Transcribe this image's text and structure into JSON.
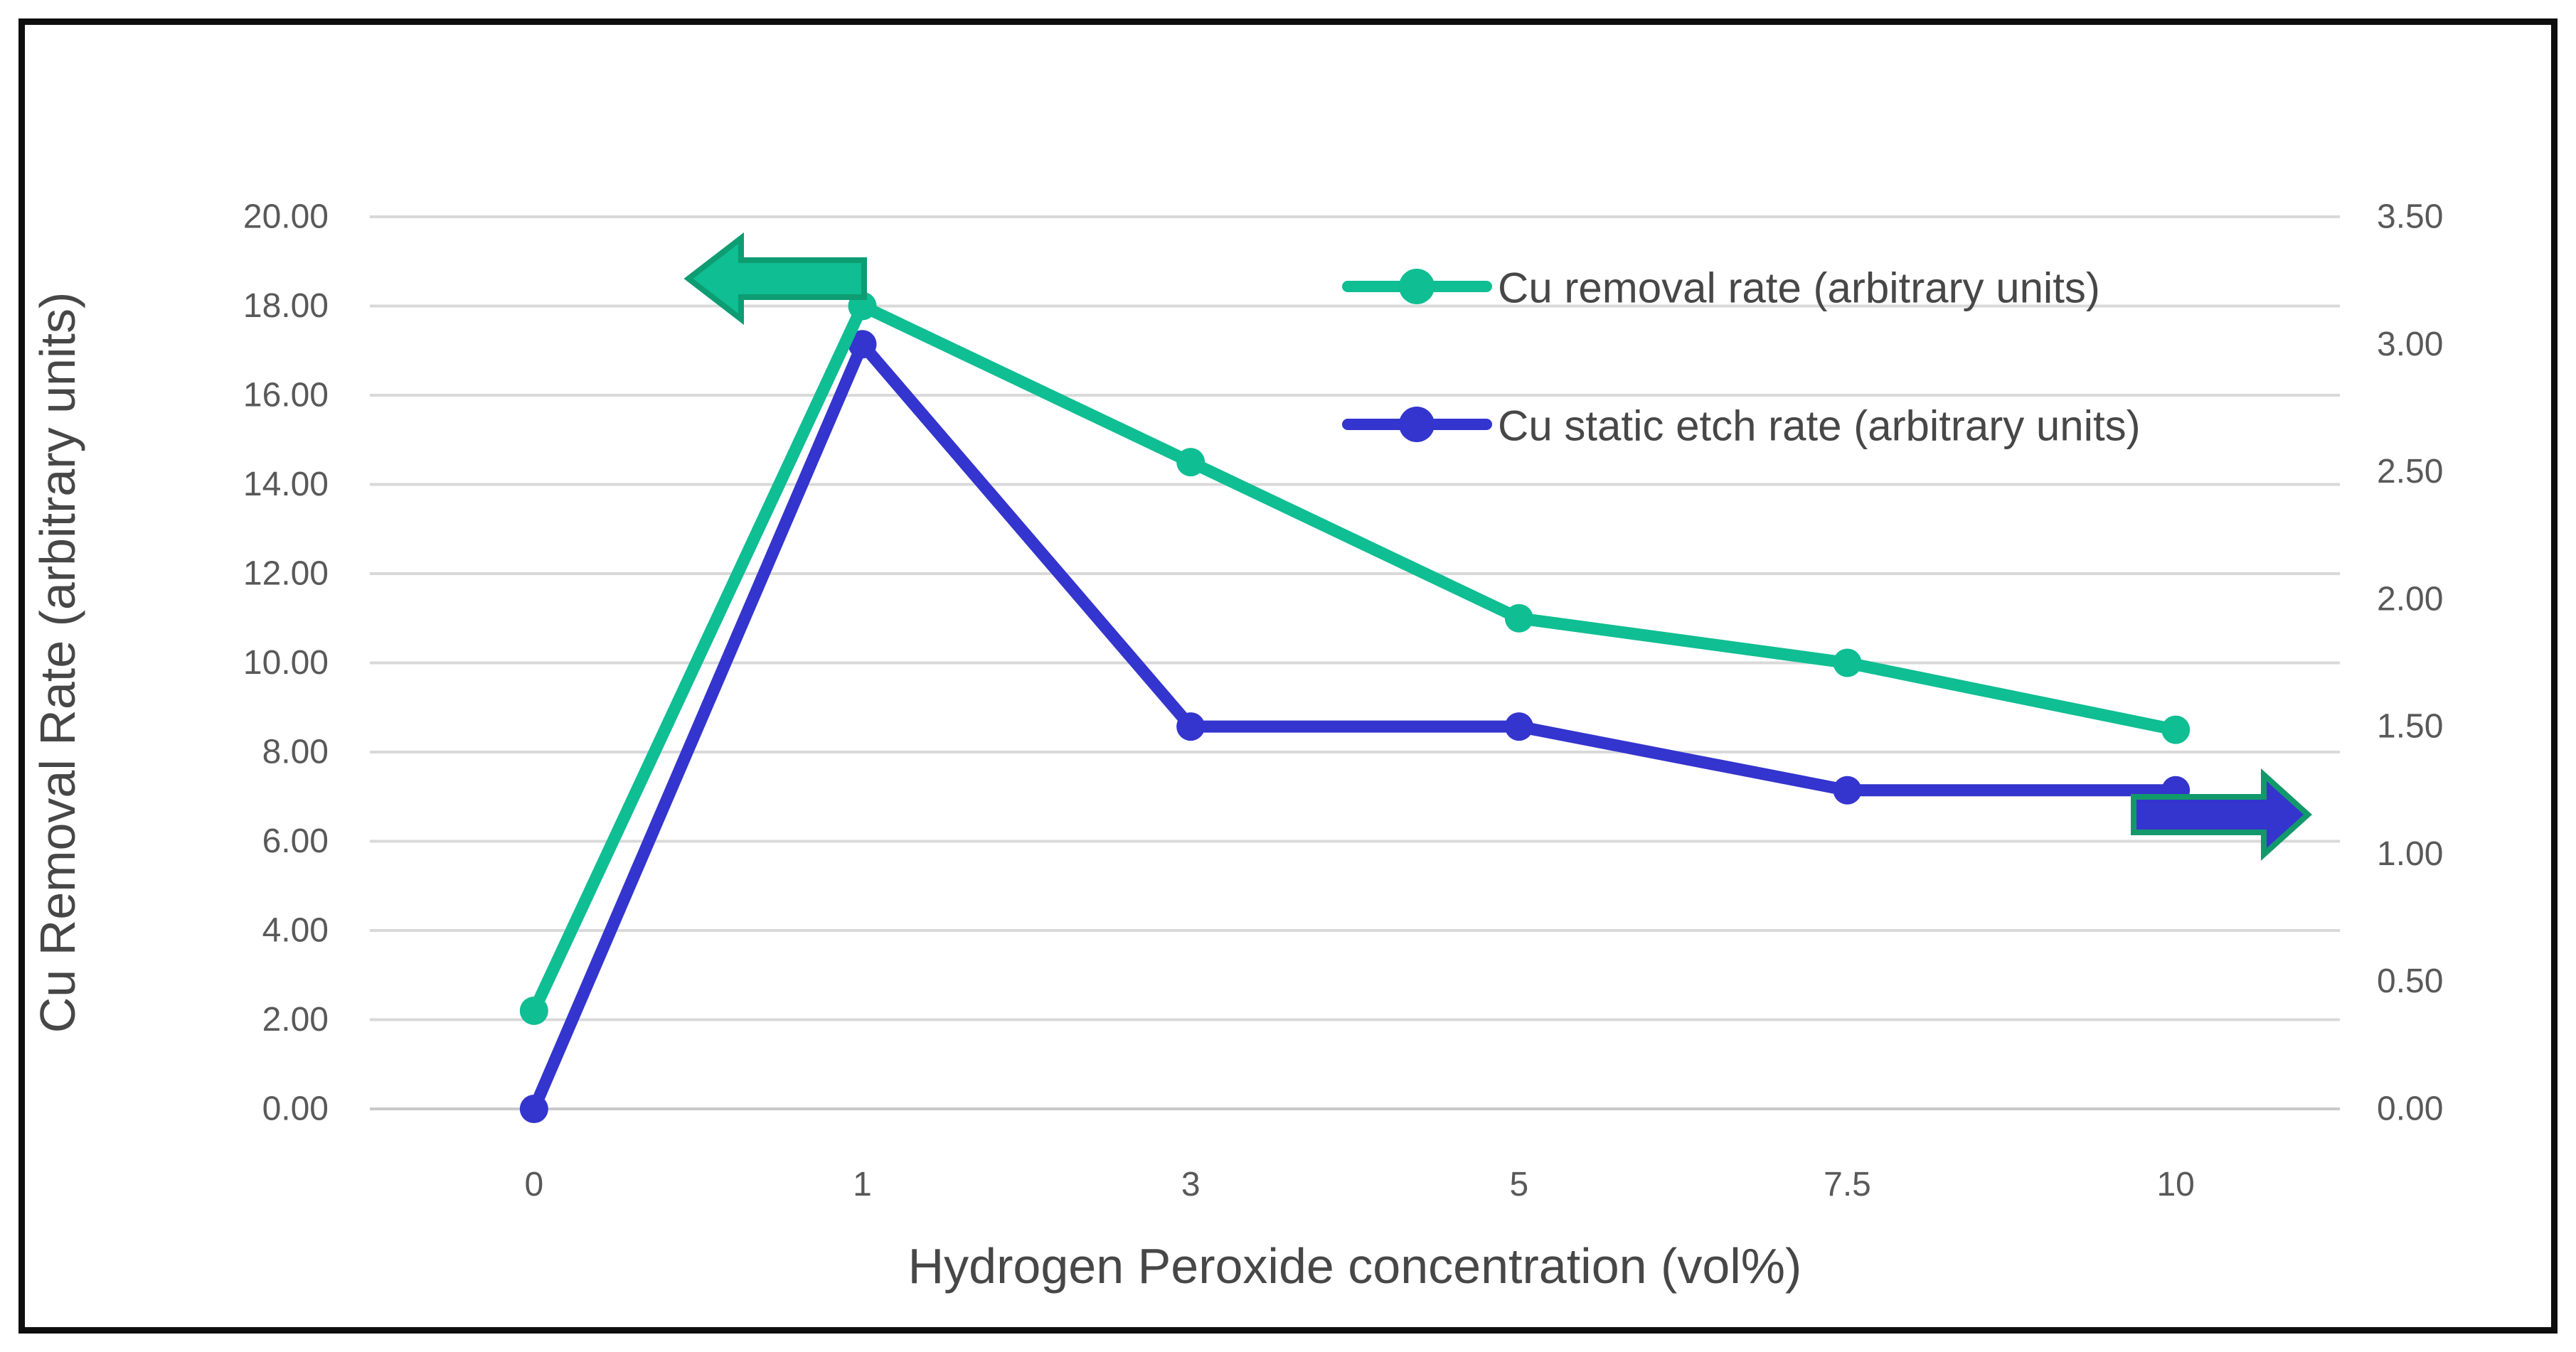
{
  "chart_data": {
    "type": "line",
    "title": "",
    "xlabel": "Hydrogen Peroxide concentration (vol%)",
    "ylabel": "Cu Removal Rate (arbitrary units)",
    "categories": [
      "0",
      "1",
      "3",
      "5",
      "7.5",
      "10"
    ],
    "axes": {
      "left": {
        "min": 0,
        "max": 20,
        "tick_labels": [
          "20.00",
          "18.00",
          "16.00",
          "14.00",
          "12.00",
          "10.00",
          "8.00",
          "6.00",
          "4.00",
          "2.00",
          "0.00"
        ],
        "tick_values": [
          20,
          18,
          16,
          14,
          12,
          10,
          8,
          6,
          4,
          2,
          0
        ]
      },
      "right": {
        "min": 0,
        "max": 3.5,
        "tick_labels": [
          "3.50",
          "3.00",
          "2.50",
          "2.00",
          "1.50",
          "1.00",
          "0.50",
          "0.00"
        ],
        "tick_values": [
          3.5,
          3,
          2.5,
          2,
          1.5,
          1,
          0.5,
          0
        ]
      }
    },
    "series": [
      {
        "name": "Cu removal rate (arbitrary units)",
        "axis": "left",
        "color": "#0FBE93",
        "values": [
          2.2,
          18,
          14.5,
          11,
          10,
          8.5
        ]
      },
      {
        "name": "Cu static etch rate (arbitrary units)",
        "axis": "right",
        "color": "#3434CE",
        "values": [
          0,
          3,
          1.5,
          1.5,
          1.25,
          1.25
        ]
      }
    ],
    "annotations": [
      {
        "id": "left-axis-arrow",
        "shape": "block-arrow",
        "direction": "left",
        "fill": "#0FBE93",
        "outline": "#0E9C72"
      },
      {
        "id": "right-axis-arrow",
        "shape": "block-arrow",
        "direction": "right",
        "fill": "#3434CE",
        "outline": "#12996B"
      }
    ],
    "legend_position": "top-right",
    "grid": "horizontal",
    "gridline_color": "#d9d9d9",
    "axisline_color": "#c9c9c9",
    "tick_text_color": "#595959",
    "title_text_color": "#474747"
  }
}
